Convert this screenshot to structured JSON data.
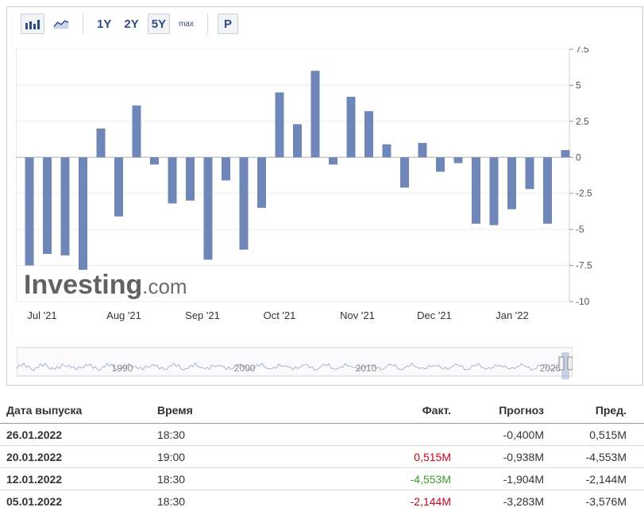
{
  "toolbar": {
    "bar_chart_icon": "bar-chart-icon",
    "line_chart_icon": "line-chart-icon",
    "ranges": [
      "1Y",
      "2Y",
      "5Y",
      "max"
    ],
    "active_range": "5Y",
    "p_label": "P"
  },
  "watermark": {
    "text_bold": "Investing",
    "text_light": ".com"
  },
  "chart_data": {
    "type": "bar",
    "ylim": [
      -10,
      7.5
    ],
    "yticks": [
      "7.5",
      "5",
      "2.5",
      "0",
      "-2.5",
      "-5",
      "-7.5",
      "-10"
    ],
    "xtick_labels": [
      "Jul '21",
      "Aug '21",
      "Sep '21",
      "Oct '21",
      "Nov '21",
      "Dec '21",
      "Jan '22"
    ],
    "values": [
      -7.5,
      -6.7,
      -6.8,
      -7.8,
      2.0,
      -4.1,
      3.6,
      -0.5,
      -3.2,
      -3.0,
      -7.1,
      -1.6,
      -6.4,
      -3.5,
      4.5,
      2.3,
      6.0,
      -0.5,
      4.2,
      3.2,
      0.9,
      -2.1,
      1.0,
      -1.0,
      -0.4,
      -4.6,
      -4.7,
      -3.6,
      -2.2,
      -4.6,
      0.5
    ],
    "color": "#6f86b8",
    "grid": true
  },
  "navigator": {
    "year_labels": [
      "1990",
      "2000",
      "2010",
      "2020"
    ]
  },
  "table": {
    "headers": {
      "date": "Дата выпуска",
      "time": "Время",
      "actual": "Факт.",
      "forecast": "Прогноз",
      "previous": "Пред."
    },
    "rows": [
      {
        "date": "26.01.2022",
        "time": "18:30",
        "actual": "",
        "actual_color": "",
        "forecast": "-0,400M",
        "previous": "0,515M"
      },
      {
        "date": "20.01.2022",
        "time": "19:00",
        "actual": "0,515M",
        "actual_color": "red",
        "forecast": "-0,938M",
        "previous": "-4,553M"
      },
      {
        "date": "12.01.2022",
        "time": "18:30",
        "actual": "-4,553M",
        "actual_color": "green",
        "forecast": "-1,904M",
        "previous": "-2,144M"
      },
      {
        "date": "05.01.2022",
        "time": "18:30",
        "actual": "-2,144M",
        "actual_color": "red",
        "forecast": "-3,283M",
        "previous": "-3,576M"
      }
    ]
  }
}
